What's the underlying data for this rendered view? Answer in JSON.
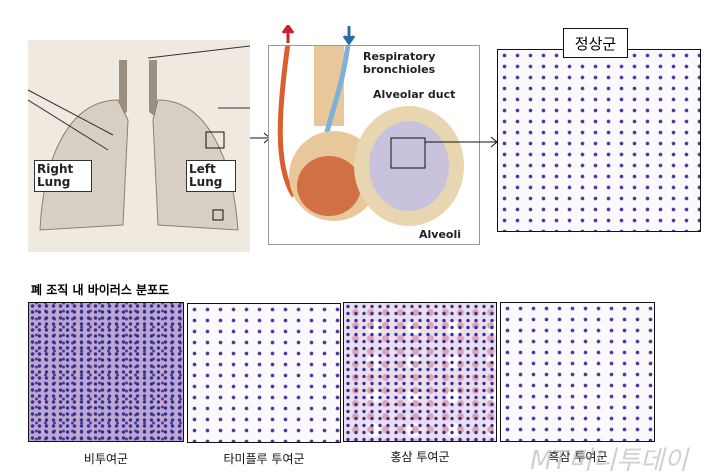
{
  "diagram": {
    "lung": {
      "right_label": "Right Lung",
      "left_label": "Left Lung"
    },
    "alveoli": {
      "labels": [
        "Respiratory bronchioles",
        "Alveolar duct",
        "Alveoli"
      ]
    },
    "normal_group": "정상군"
  },
  "section_title": "폐 조직 내 바이러스 분포도",
  "panels": [
    {
      "caption": "비투여군"
    },
    {
      "caption": "타미플루 투여군"
    },
    {
      "caption": "홍삼 투여군"
    },
    {
      "caption": "흑삼 투여군"
    }
  ],
  "watermark": "MT머니투데이",
  "colors": {
    "artery": "#c8202e",
    "vein": "#2a6ea8",
    "stain": "#4a3a9c"
  }
}
